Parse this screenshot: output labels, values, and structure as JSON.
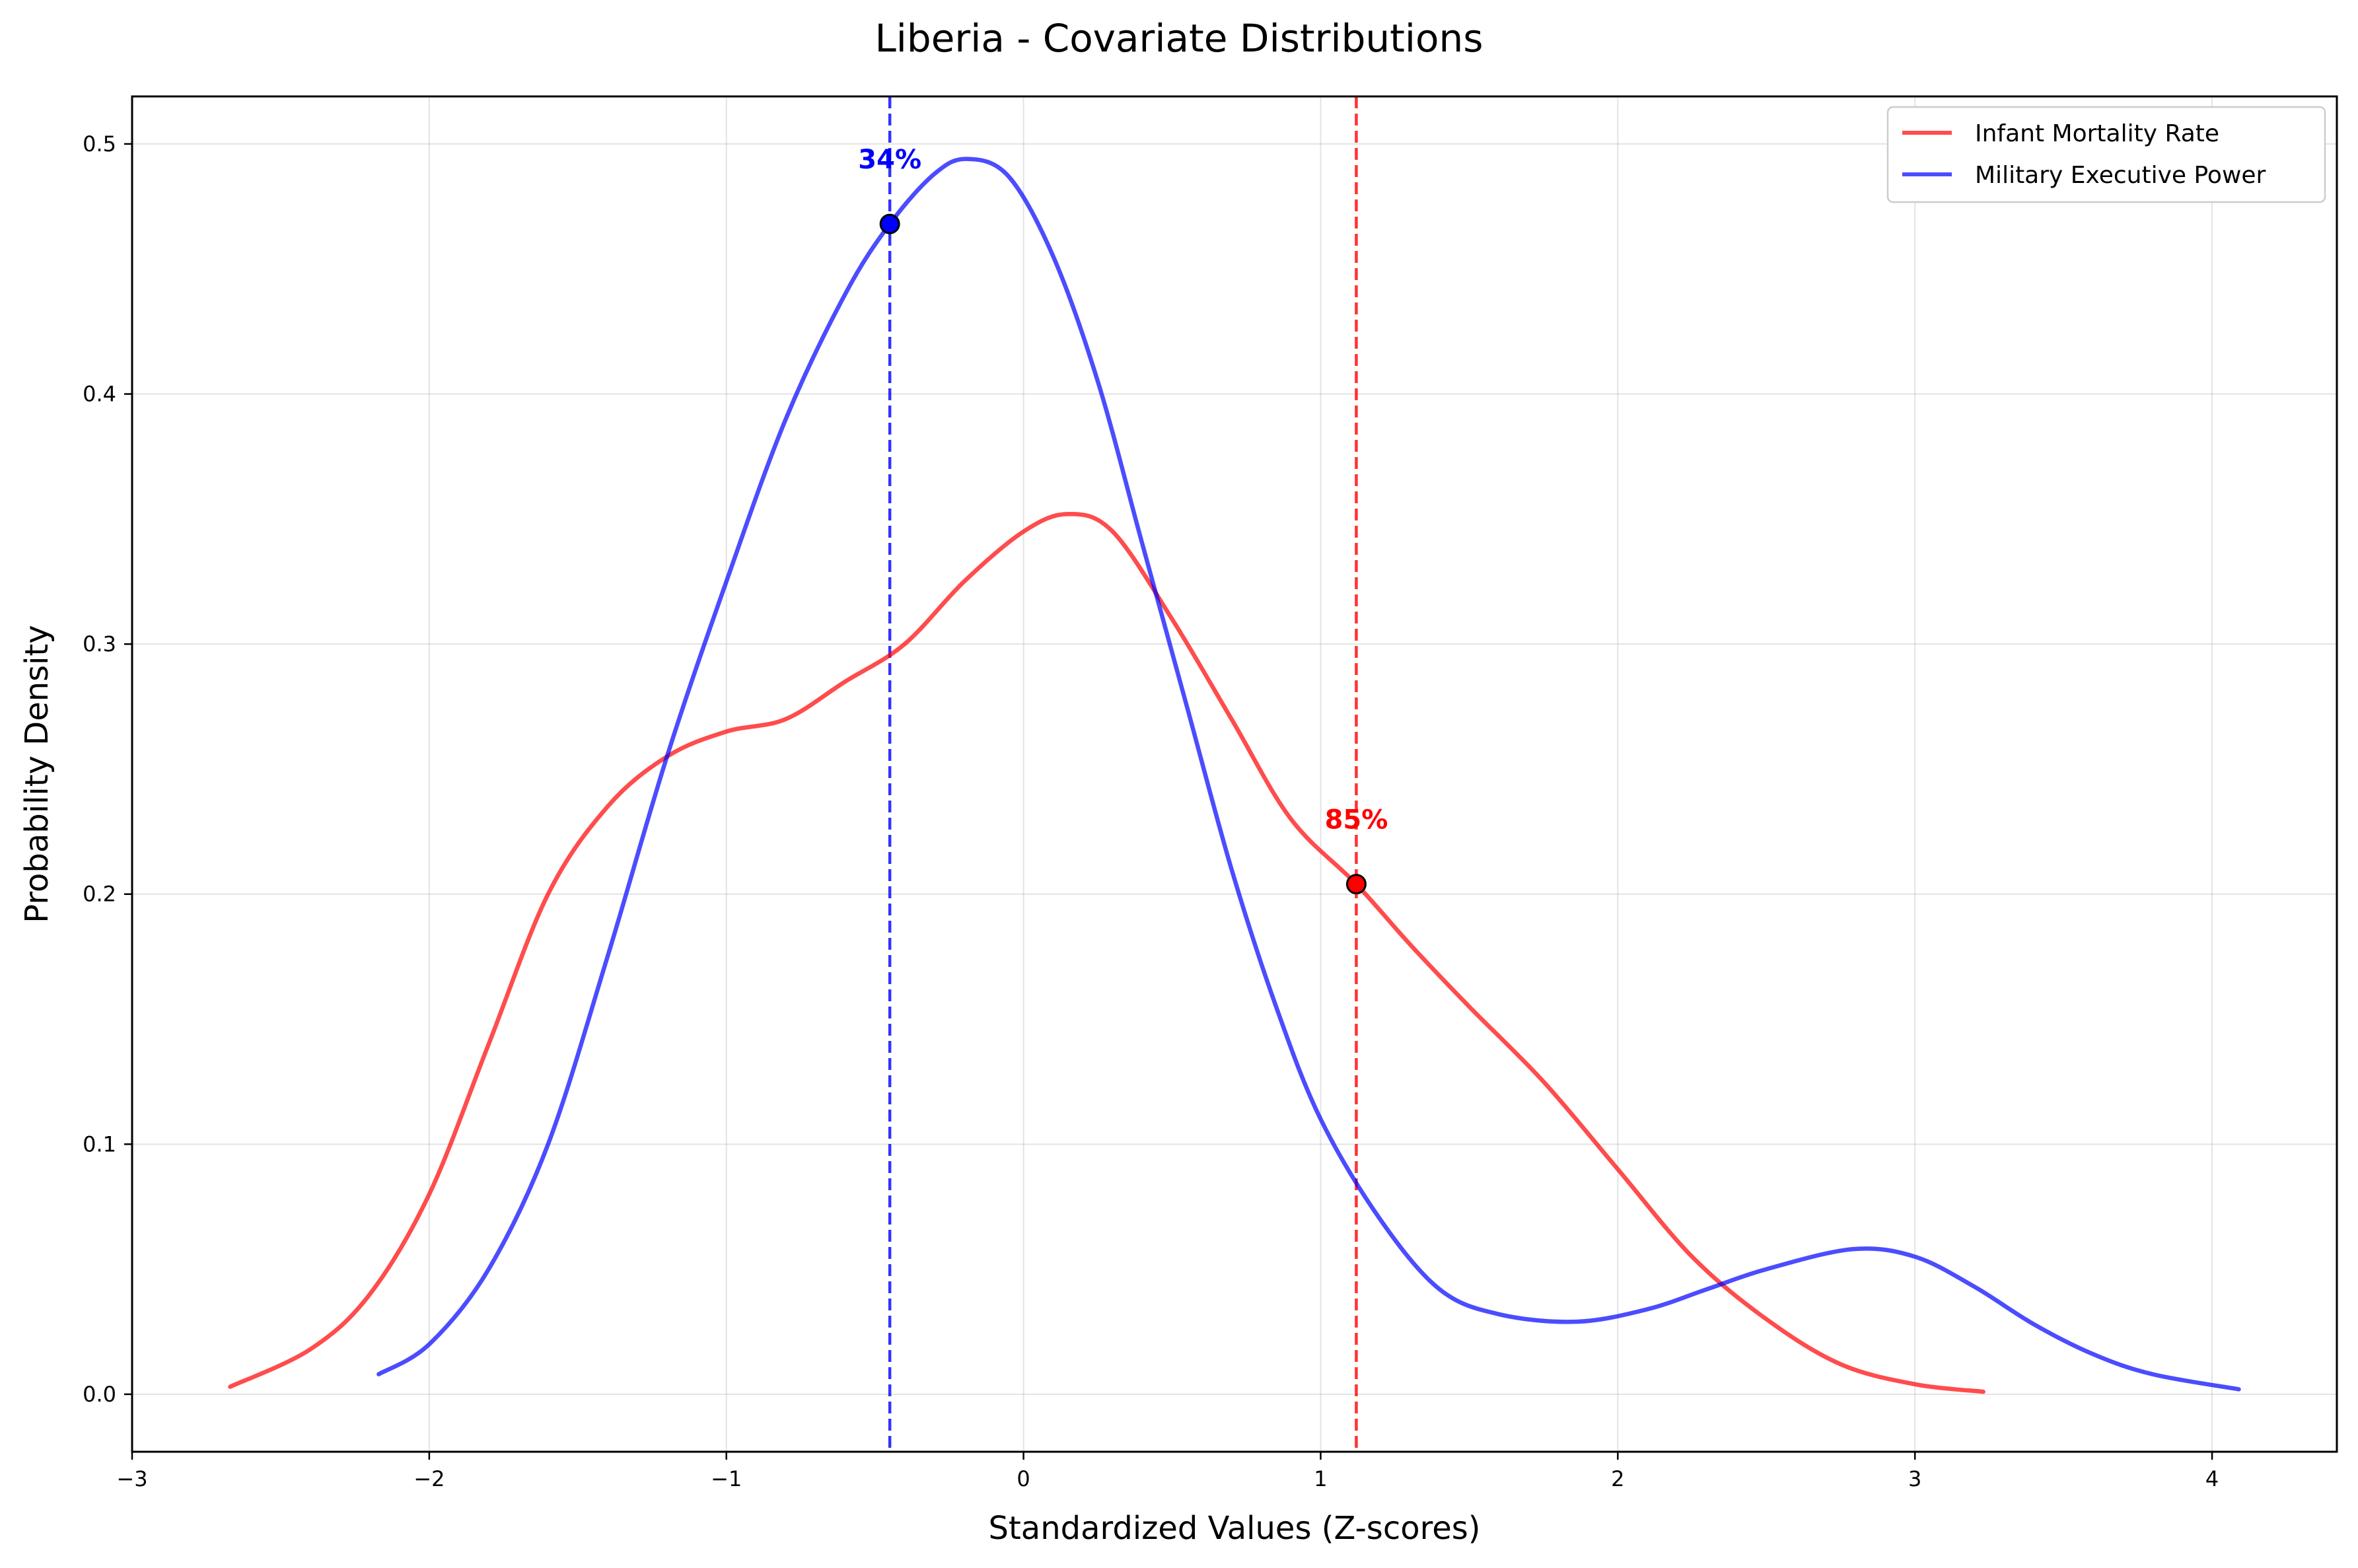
{
  "chart_data": {
    "type": "line",
    "title": "Liberia - Covariate Distributions",
    "xlabel": "Standardized Values (Z-scores)",
    "ylabel": "Probability Density",
    "xlim": [
      -3,
      4.42
    ],
    "ylim": [
      -0.023,
      0.519
    ],
    "xticks": [
      -3,
      -2,
      -1,
      0,
      1,
      2,
      3,
      4
    ],
    "xtick_labels": [
      "−3",
      "−2",
      "−1",
      "0",
      "1",
      "2",
      "3",
      "4"
    ],
    "yticks": [
      0.0,
      0.1,
      0.2,
      0.3,
      0.4,
      0.5
    ],
    "ytick_labels": [
      "0.0",
      "0.1",
      "0.2",
      "0.3",
      "0.4",
      "0.5"
    ],
    "grid": true,
    "legend_position": "top-right",
    "series": [
      {
        "name": "Infant Mortality Rate",
        "color": "#ff0000",
        "x": [
          -2.67,
          -2.4,
          -2.2,
          -2.0,
          -1.8,
          -1.6,
          -1.4,
          -1.2,
          -1.0,
          -0.8,
          -0.6,
          -0.4,
          -0.2,
          0.0,
          0.15,
          0.3,
          0.5,
          0.7,
          0.9,
          1.12,
          1.3,
          1.5,
          1.75,
          2.0,
          2.25,
          2.5,
          2.75,
          3.0,
          3.23
        ],
        "y": [
          0.003,
          0.018,
          0.04,
          0.08,
          0.14,
          0.2,
          0.235,
          0.255,
          0.265,
          0.27,
          0.285,
          0.3,
          0.325,
          0.345,
          0.352,
          0.345,
          0.31,
          0.27,
          0.23,
          0.204,
          0.18,
          0.155,
          0.125,
          0.09,
          0.055,
          0.03,
          0.012,
          0.004,
          0.001
        ]
      },
      {
        "name": "Military Executive Power",
        "color": "#0000ff",
        "x": [
          -2.17,
          -2.0,
          -1.8,
          -1.6,
          -1.4,
          -1.2,
          -1.0,
          -0.8,
          -0.6,
          -0.45,
          -0.3,
          -0.19,
          -0.05,
          0.1,
          0.25,
          0.4,
          0.55,
          0.7,
          0.85,
          1.0,
          1.2,
          1.4,
          1.6,
          1.86,
          2.1,
          2.3,
          2.5,
          2.79,
          3.0,
          3.2,
          3.4,
          3.6,
          3.8,
          4.09
        ],
        "y": [
          0.008,
          0.02,
          0.05,
          0.1,
          0.175,
          0.255,
          0.325,
          0.39,
          0.44,
          0.468,
          0.488,
          0.494,
          0.487,
          0.455,
          0.405,
          0.34,
          0.275,
          0.21,
          0.155,
          0.11,
          0.07,
          0.042,
          0.032,
          0.029,
          0.034,
          0.042,
          0.05,
          0.058,
          0.055,
          0.043,
          0.028,
          0.016,
          0.008,
          0.002
        ]
      }
    ],
    "markers": [
      {
        "series": "Military Executive Power",
        "x": -0.45,
        "y": 0.468,
        "color": "#0000ff",
        "label": "34%"
      },
      {
        "series": "Infant Mortality Rate",
        "x": 1.12,
        "y": 0.204,
        "color": "#ff0000",
        "label": "85%"
      }
    ]
  }
}
